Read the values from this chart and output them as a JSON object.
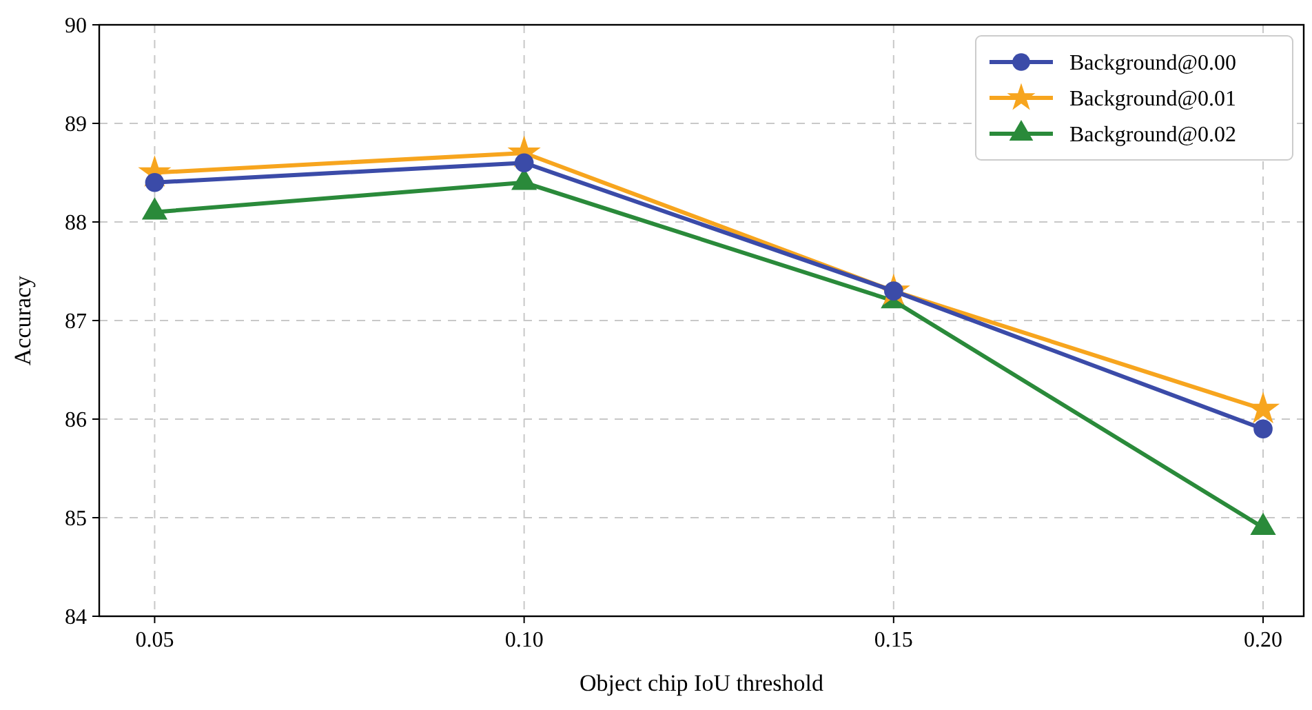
{
  "chart_data": {
    "type": "line",
    "xlabel": "Object chip IoU threshold",
    "ylabel": "Accuracy",
    "x": [
      0.05,
      0.1,
      0.15,
      0.2
    ],
    "xlim": [
      0.0425,
      0.2055
    ],
    "ylim": [
      84,
      90
    ],
    "xticks": [
      {
        "value": 0.05,
        "label": "0.05"
      },
      {
        "value": 0.1,
        "label": "0.10"
      },
      {
        "value": 0.15,
        "label": "0.15"
      },
      {
        "value": 0.2,
        "label": "0.20"
      }
    ],
    "yticks": [
      84,
      85,
      86,
      87,
      88,
      89,
      90
    ],
    "grid": true,
    "legend": "top right",
    "line_style": "solid",
    "series": [
      {
        "name": "Background@0.00",
        "color": "#3b4ba8",
        "marker": "circle",
        "values": [
          88.4,
          88.6,
          87.3,
          85.9
        ]
      },
      {
        "name": "Background@0.01",
        "color": "#f7a51e",
        "marker": "star",
        "values": [
          88.5,
          88.7,
          87.3,
          86.1
        ]
      },
      {
        "name": "Background@0.02",
        "color": "#2a8a3a",
        "marker": "triangle",
        "values": [
          88.1,
          88.4,
          87.2,
          84.9
        ]
      }
    ]
  }
}
